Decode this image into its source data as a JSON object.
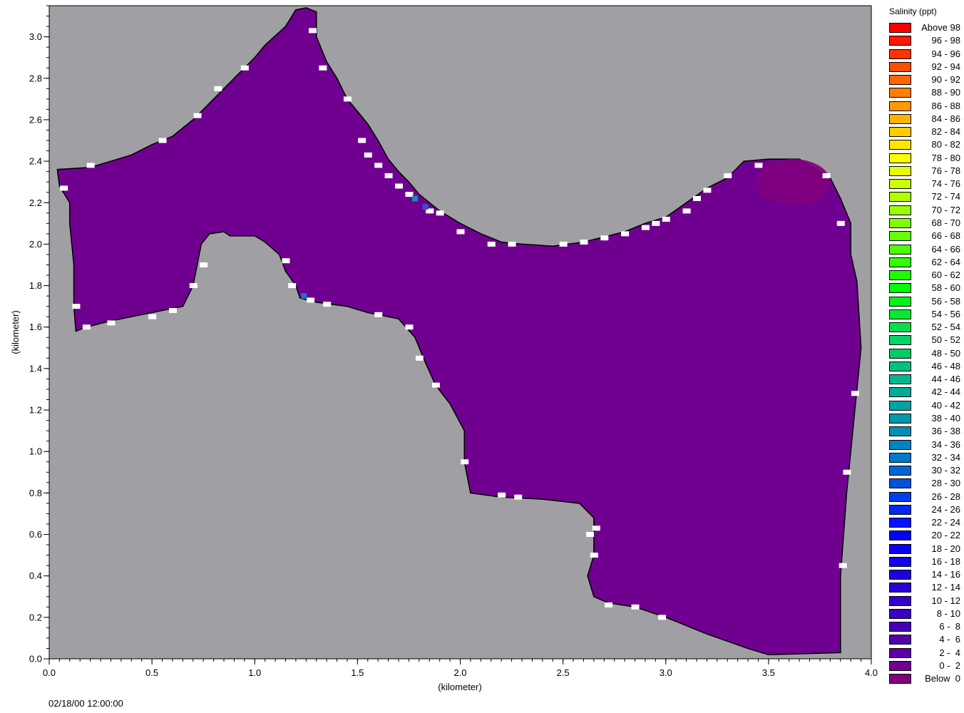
{
  "chart_data": {
    "type": "heatmap",
    "title": "",
    "xlabel": "(kilometer)",
    "ylabel": "(kilometer)",
    "xlim": [
      0.0,
      4.0
    ],
    "ylim": [
      0.0,
      3.15
    ],
    "x_ticks": [
      "0.0",
      "0.5",
      "1.0",
      "1.5",
      "2.0",
      "2.5",
      "3.0",
      "3.5",
      "4.0"
    ],
    "y_ticks": [
      "0.0",
      "0.2",
      "0.4",
      "0.6",
      "0.8",
      "1.0",
      "1.2",
      "1.4",
      "1.6",
      "1.8",
      "2.0",
      "2.2",
      "2.4",
      "2.6",
      "2.8",
      "3.0"
    ],
    "background_color": "#a0a0a4",
    "water_color": "#700090",
    "dry_cell_color": "#ffffff",
    "domain_outline": [
      [
        0.04,
        2.36
      ],
      [
        0.2,
        2.37
      ],
      [
        0.3,
        2.4
      ],
      [
        0.4,
        2.43
      ],
      [
        0.5,
        2.48
      ],
      [
        0.6,
        2.52
      ],
      [
        0.7,
        2.6
      ],
      [
        0.8,
        2.7
      ],
      [
        0.9,
        2.8
      ],
      [
        1.0,
        2.9
      ],
      [
        1.05,
        2.96
      ],
      [
        1.15,
        3.05
      ],
      [
        1.2,
        3.13
      ],
      [
        1.25,
        3.14
      ],
      [
        1.3,
        3.12
      ],
      [
        1.3,
        3.0
      ],
      [
        1.35,
        2.88
      ],
      [
        1.4,
        2.8
      ],
      [
        1.45,
        2.7
      ],
      [
        1.55,
        2.58
      ],
      [
        1.6,
        2.5
      ],
      [
        1.65,
        2.41
      ],
      [
        1.7,
        2.35
      ],
      [
        1.75,
        2.3
      ],
      [
        1.8,
        2.24
      ],
      [
        1.9,
        2.16
      ],
      [
        2.0,
        2.1
      ],
      [
        2.1,
        2.05
      ],
      [
        2.2,
        2.01
      ],
      [
        2.3,
        2.0
      ],
      [
        2.45,
        1.99
      ],
      [
        2.6,
        2.01
      ],
      [
        2.8,
        2.06
      ],
      [
        2.9,
        2.1
      ],
      [
        3.0,
        2.13
      ],
      [
        3.1,
        2.2
      ],
      [
        3.2,
        2.27
      ],
      [
        3.3,
        2.32
      ],
      [
        3.38,
        2.4
      ],
      [
        3.5,
        2.41
      ],
      [
        3.65,
        2.41
      ],
      [
        3.75,
        2.35
      ],
      [
        3.8,
        2.32
      ],
      [
        3.85,
        2.22
      ],
      [
        3.9,
        2.1
      ],
      [
        3.9,
        1.95
      ],
      [
        3.93,
        1.82
      ],
      [
        3.95,
        1.5
      ],
      [
        3.92,
        1.2
      ],
      [
        3.88,
        0.8
      ],
      [
        3.85,
        0.4
      ],
      [
        3.85,
        0.03
      ],
      [
        3.5,
        0.02
      ],
      [
        3.4,
        0.05
      ],
      [
        3.2,
        0.12
      ],
      [
        3.0,
        0.2
      ],
      [
        2.85,
        0.25
      ],
      [
        2.72,
        0.27
      ],
      [
        2.65,
        0.3
      ],
      [
        2.62,
        0.4
      ],
      [
        2.65,
        0.5
      ],
      [
        2.65,
        0.68
      ],
      [
        2.58,
        0.75
      ],
      [
        2.4,
        0.77
      ],
      [
        2.2,
        0.78
      ],
      [
        2.05,
        0.8
      ],
      [
        2.02,
        0.95
      ],
      [
        2.02,
        1.1
      ],
      [
        1.95,
        1.23
      ],
      [
        1.88,
        1.32
      ],
      [
        1.83,
        1.43
      ],
      [
        1.78,
        1.55
      ],
      [
        1.7,
        1.64
      ],
      [
        1.55,
        1.67
      ],
      [
        1.45,
        1.7
      ],
      [
        1.3,
        1.72
      ],
      [
        1.22,
        1.74
      ],
      [
        1.2,
        1.8
      ],
      [
        1.15,
        1.87
      ],
      [
        1.12,
        1.95
      ],
      [
        1.05,
        2.01
      ],
      [
        1.0,
        2.04
      ],
      [
        0.88,
        2.04
      ],
      [
        0.85,
        2.06
      ],
      [
        0.78,
        2.05
      ],
      [
        0.74,
        2.0
      ],
      [
        0.72,
        1.9
      ],
      [
        0.7,
        1.8
      ],
      [
        0.65,
        1.7
      ],
      [
        0.5,
        1.67
      ],
      [
        0.3,
        1.63
      ],
      [
        0.18,
        1.6
      ],
      [
        0.13,
        1.58
      ],
      [
        0.12,
        1.7
      ],
      [
        0.12,
        1.9
      ],
      [
        0.1,
        2.1
      ],
      [
        0.1,
        2.2
      ],
      [
        0.05,
        2.28
      ]
    ],
    "dry_cells": [
      [
        0.2,
        2.38
      ],
      [
        0.55,
        2.5
      ],
      [
        0.72,
        2.62
      ],
      [
        0.82,
        2.75
      ],
      [
        0.95,
        2.85
      ],
      [
        1.28,
        3.03
      ],
      [
        1.33,
        2.85
      ],
      [
        1.45,
        2.7
      ],
      [
        1.52,
        2.5
      ],
      [
        1.55,
        2.43
      ],
      [
        1.6,
        2.38
      ],
      [
        1.65,
        2.33
      ],
      [
        1.7,
        2.28
      ],
      [
        1.75,
        2.24
      ],
      [
        1.85,
        2.16
      ],
      [
        1.9,
        2.15
      ],
      [
        2.0,
        2.06
      ],
      [
        2.15,
        2.0
      ],
      [
        2.25,
        2.0
      ],
      [
        2.5,
        2.0
      ],
      [
        2.6,
        2.01
      ],
      [
        2.8,
        2.05
      ],
      [
        2.9,
        2.08
      ],
      [
        3.0,
        2.12
      ],
      [
        3.1,
        2.16
      ],
      [
        3.2,
        2.26
      ],
      [
        3.3,
        2.33
      ],
      [
        3.78,
        2.33
      ],
      [
        3.85,
        2.1
      ],
      [
        3.92,
        1.28
      ],
      [
        3.88,
        0.9
      ],
      [
        3.86,
        0.45
      ],
      [
        2.72,
        0.26
      ],
      [
        2.85,
        0.25
      ],
      [
        2.98,
        0.2
      ],
      [
        2.65,
        0.5
      ],
      [
        2.63,
        0.6
      ],
      [
        2.66,
        0.63
      ],
      [
        2.28,
        0.78
      ],
      [
        2.2,
        0.79
      ],
      [
        2.02,
        0.95
      ],
      [
        1.88,
        1.32
      ],
      [
        1.8,
        1.45
      ],
      [
        1.75,
        1.6
      ],
      [
        1.6,
        1.66
      ],
      [
        1.35,
        1.71
      ],
      [
        1.27,
        1.73
      ],
      [
        1.18,
        1.8
      ],
      [
        1.15,
        1.92
      ],
      [
        0.75,
        1.9
      ],
      [
        0.7,
        1.8
      ],
      [
        0.6,
        1.68
      ],
      [
        0.5,
        1.65
      ],
      [
        0.3,
        1.62
      ],
      [
        0.18,
        1.6
      ],
      [
        0.13,
        1.7
      ],
      [
        0.07,
        2.27
      ],
      [
        3.45,
        2.38
      ],
      [
        3.15,
        2.22
      ],
      [
        2.95,
        2.1
      ],
      [
        2.7,
        2.03
      ]
    ],
    "accent_cells": [
      {
        "x": 1.78,
        "y": 2.22,
        "color": "#1a8ab0"
      },
      {
        "x": 1.83,
        "y": 2.18,
        "color": "#3a50d0"
      },
      {
        "x": 1.24,
        "y": 1.75,
        "color": "#1a70d0"
      }
    ],
    "highlight_region": {
      "cx": 3.62,
      "cy": 2.3,
      "rx": 0.18,
      "ry": 0.11,
      "color": "#800080"
    },
    "legend": {
      "title": "Salinity (ppt)",
      "entries": [
        {
          "label": "Above 98",
          "color": "#ff0000"
        },
        {
          "label": "96 - 98",
          "color": "#ff1a00"
        },
        {
          "label": "94 - 96",
          "color": "#ff3300"
        },
        {
          "label": "92 - 94",
          "color": "#ff4d00"
        },
        {
          "label": "90 - 92",
          "color": "#ff6600"
        },
        {
          "label": "88 - 90",
          "color": "#ff8000"
        },
        {
          "label": "86 - 88",
          "color": "#ff9900"
        },
        {
          "label": "84 - 86",
          "color": "#ffb300"
        },
        {
          "label": "82 - 84",
          "color": "#ffcc00"
        },
        {
          "label": "80 - 82",
          "color": "#ffe600"
        },
        {
          "label": "78 - 80",
          "color": "#ffff00"
        },
        {
          "label": "76 - 78",
          "color": "#e6ff00"
        },
        {
          "label": "74 - 76",
          "color": "#ccff00"
        },
        {
          "label": "72 - 74",
          "color": "#b3ff00"
        },
        {
          "label": "70 - 72",
          "color": "#99ff00"
        },
        {
          "label": "68 - 70",
          "color": "#80ff00"
        },
        {
          "label": "66 - 68",
          "color": "#66ff00"
        },
        {
          "label": "64 - 66",
          "color": "#4dff00"
        },
        {
          "label": "62 - 64",
          "color": "#33ff00"
        },
        {
          "label": "60 - 62",
          "color": "#1aff00"
        },
        {
          "label": "58 - 60",
          "color": "#00ff00"
        },
        {
          "label": "56 - 58",
          "color": "#00f51a"
        },
        {
          "label": "54 - 56",
          "color": "#00eb33"
        },
        {
          "label": "52 - 54",
          "color": "#00e04d"
        },
        {
          "label": "50 - 52",
          "color": "#00d666"
        },
        {
          "label": "48 - 50",
          "color": "#00cc66"
        },
        {
          "label": "46 - 48",
          "color": "#00c280"
        },
        {
          "label": "44 - 46",
          "color": "#00b890"
        },
        {
          "label": "42 - 44",
          "color": "#00ad99"
        },
        {
          "label": "40 - 42",
          "color": "#00a3a3"
        },
        {
          "label": "38 - 40",
          "color": "#0099ad"
        },
        {
          "label": "36 - 38",
          "color": "#008fb3"
        },
        {
          "label": "34 - 36",
          "color": "#0085c0"
        },
        {
          "label": "32 - 34",
          "color": "#007acc"
        },
        {
          "label": "30 - 32",
          "color": "#0066d6"
        },
        {
          "label": "28 - 30",
          "color": "#0052e0"
        },
        {
          "label": "26 - 28",
          "color": "#003deb"
        },
        {
          "label": "24 - 26",
          "color": "#0029f5"
        },
        {
          "label": "22 - 24",
          "color": "#0014ff"
        },
        {
          "label": "20 - 22",
          "color": "#0000ff"
        },
        {
          "label": "18 - 20",
          "color": "#0a00f5"
        },
        {
          "label": "16 - 18",
          "color": "#1400eb"
        },
        {
          "label": "14 - 16",
          "color": "#1f00e0"
        },
        {
          "label": "12 - 14",
          "color": "#2900d6"
        },
        {
          "label": "10 - 12",
          "color": "#3300cc"
        },
        {
          "label": "8 - 10",
          "color": "#3d00c2"
        },
        {
          "label": "6 -  8",
          "color": "#4700b8"
        },
        {
          "label": "4 -  6",
          "color": "#5200ad"
        },
        {
          "label": "2 -  4",
          "color": "#5c00a3"
        },
        {
          "label": "0 -  2",
          "color": "#700090"
        },
        {
          "label": "Below  0",
          "color": "#800080"
        }
      ]
    }
  },
  "timestamp": "02/18/00 12:00:00"
}
